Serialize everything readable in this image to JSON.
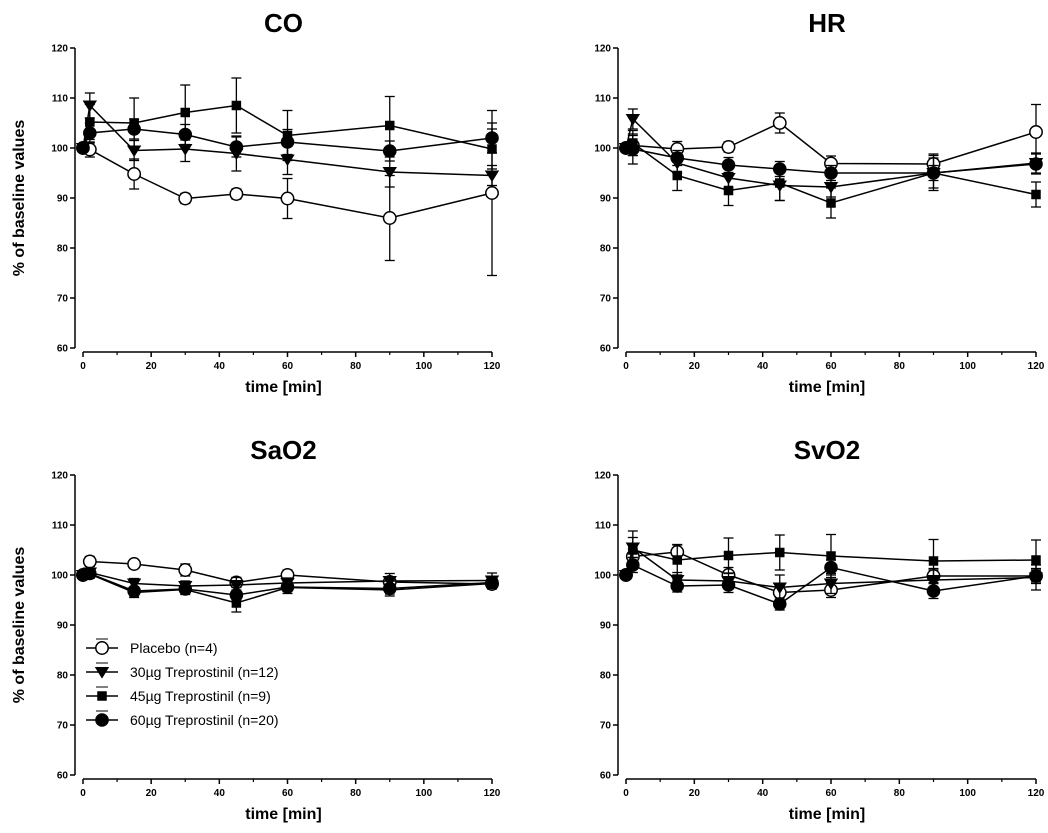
{
  "legend": [
    {
      "label": "Placebo (n=4)",
      "marker": "open-circle"
    },
    {
      "label": "30µg Treprostinil (n=12)",
      "marker": "triangle-down"
    },
    {
      "label": "45µg Treprostinil (n=9)",
      "marker": "square"
    },
    {
      "label": "60µg Treprostinil (n=20)",
      "marker": "filled-circle"
    }
  ],
  "chart_data": [
    {
      "type": "line",
      "title": "CO",
      "xlabel": "time   [min]",
      "ylabel": "% of baseline values",
      "xlim": [
        0,
        120
      ],
      "ylim": [
        60,
        120
      ],
      "xticks": [
        0,
        20,
        40,
        60,
        80,
        100,
        120
      ],
      "yticks": [
        60,
        70,
        80,
        90,
        100,
        110,
        120
      ],
      "series": [
        {
          "name": "Placebo (n=4)",
          "marker": "open-circle",
          "x": [
            0,
            2,
            15,
            30,
            45,
            60,
            90,
            120
          ],
          "y": [
            100,
            99.7,
            94.8,
            89.9,
            90.8,
            89.9,
            86.0,
            91.0
          ],
          "err": [
            0,
            1.5,
            3,
            1,
            1,
            4,
            8.5,
            16.5
          ]
        },
        {
          "name": "30µg Treprostinil (n=12)",
          "marker": "triangle-down",
          "x": [
            0,
            2,
            15,
            30,
            45,
            60,
            90,
            120
          ],
          "y": [
            100,
            108.5,
            99.5,
            99.8,
            98.9,
            97.7,
            95.2,
            94.5
          ],
          "err": [
            0,
            2.5,
            2,
            2.5,
            3.5,
            3,
            3,
            2
          ]
        },
        {
          "name": "45µg Treprostinil (n=9)",
          "marker": "square",
          "x": [
            0,
            2,
            15,
            30,
            45,
            60,
            90,
            120
          ],
          "y": [
            100,
            105.2,
            105.0,
            107.1,
            108.5,
            102.5,
            104.5,
            99.8
          ],
          "err": [
            0,
            3.5,
            5,
            5.5,
            5.5,
            5,
            5.8,
            4
          ]
        },
        {
          "name": "60µg Treprostinil (n=20)",
          "marker": "filled-circle",
          "x": [
            0,
            2,
            15,
            30,
            45,
            60,
            90,
            120
          ],
          "y": [
            100,
            103.0,
            103.8,
            102.7,
            100.2,
            101.2,
            99.4,
            102.0
          ],
          "err": [
            0,
            2,
            2,
            2,
            2,
            2.5,
            2,
            3
          ]
        }
      ]
    },
    {
      "type": "line",
      "title": "HR",
      "xlabel": "time   [min]",
      "ylabel": "",
      "xlim": [
        0,
        120
      ],
      "ylim": [
        60,
        120
      ],
      "xticks": [
        0,
        20,
        40,
        60,
        80,
        100,
        120
      ],
      "yticks": [
        60,
        70,
        80,
        90,
        100,
        110,
        120
      ],
      "series": [
        {
          "name": "Placebo (n=4)",
          "marker": "open-circle",
          "x": [
            0,
            2,
            15,
            30,
            45,
            60,
            90,
            120
          ],
          "y": [
            100,
            100.5,
            99.8,
            100.2,
            105.0,
            96.9,
            96.8,
            103.2
          ],
          "err": [
            0,
            2,
            1.5,
            1,
            2,
            1.5,
            2,
            5.5
          ]
        },
        {
          "name": "30µg Treprostinil (n=12)",
          "marker": "triangle-down",
          "x": [
            0,
            2,
            15,
            30,
            45,
            60,
            90,
            120
          ],
          "y": [
            100,
            105.8,
            97.0,
            94.0,
            92.5,
            92.2,
            95.0,
            97.0
          ],
          "err": [
            0,
            2,
            2,
            2,
            3,
            2,
            3,
            2
          ]
        },
        {
          "name": "45µg Treprostinil (n=9)",
          "marker": "square",
          "x": [
            0,
            2,
            15,
            30,
            45,
            60,
            90,
            120
          ],
          "y": [
            100,
            101.0,
            94.5,
            91.5,
            93.0,
            89.0,
            95.0,
            90.7
          ],
          "err": [
            0,
            2.5,
            3,
            3,
            3.5,
            3,
            3.5,
            2.5
          ]
        },
        {
          "name": "60µg Treprostinil (n=20)",
          "marker": "filled-circle",
          "x": [
            0,
            2,
            15,
            30,
            45,
            60,
            90,
            120
          ],
          "y": [
            100,
            99.8,
            98.0,
            96.6,
            95.8,
            95.0,
            95.0,
            96.8
          ],
          "err": [
            0,
            3,
            1.5,
            1.5,
            1.5,
            1.5,
            1.5,
            2
          ]
        }
      ]
    },
    {
      "type": "line",
      "title": "SaO2",
      "xlabel": "time   [min]",
      "ylabel": "% of baseline values",
      "xlim": [
        0,
        120
      ],
      "ylim": [
        60,
        120
      ],
      "xticks": [
        0,
        20,
        40,
        60,
        80,
        100,
        120
      ],
      "yticks": [
        60,
        70,
        80,
        90,
        100,
        110,
        120
      ],
      "series": [
        {
          "name": "Placebo (n=4)",
          "marker": "open-circle",
          "x": [
            0,
            2,
            15,
            30,
            45,
            60,
            90,
            120
          ],
          "y": [
            100,
            102.7,
            102.2,
            101.0,
            98.5,
            100.0,
            98.6,
            98.2
          ],
          "err": [
            0,
            1,
            0.8,
            1.2,
            1,
            1,
            1,
            1
          ]
        },
        {
          "name": "30µg Treprostinil (n=12)",
          "marker": "triangle-down",
          "x": [
            0,
            2,
            15,
            30,
            45,
            60,
            90,
            120
          ],
          "y": [
            100,
            100.5,
            98.3,
            97.8,
            98.0,
            98.4,
            98.8,
            98.9
          ],
          "err": [
            0,
            0.8,
            1,
            1,
            1.5,
            1,
            1.5,
            1.5
          ]
        },
        {
          "name": "45µg Treprostinil (n=9)",
          "marker": "square",
          "x": [
            0,
            2,
            15,
            30,
            45,
            60,
            90,
            120
          ],
          "y": [
            100,
            100.2,
            96.5,
            97.1,
            94.4,
            97.5,
            97.0,
            98.3
          ],
          "err": [
            0,
            0.8,
            1,
            1,
            1.8,
            1.2,
            1.2,
            1
          ]
        },
        {
          "name": "60µg Treprostinil (n=20)",
          "marker": "filled-circle",
          "x": [
            0,
            2,
            15,
            30,
            45,
            60,
            90,
            120
          ],
          "y": [
            100,
            100.3,
            96.8,
            97.2,
            96.0,
            97.6,
            97.3,
            98.5
          ],
          "err": [
            0,
            0.8,
            0.8,
            0.8,
            1,
            0.8,
            0.8,
            0.8
          ]
        }
      ]
    },
    {
      "type": "line",
      "title": "SvO2",
      "xlabel": "time   [min]",
      "ylabel": "",
      "xlim": [
        0,
        120
      ],
      "ylim": [
        60,
        120
      ],
      "xticks": [
        0,
        20,
        40,
        60,
        80,
        100,
        120
      ],
      "yticks": [
        60,
        70,
        80,
        90,
        100,
        110,
        120
      ],
      "series": [
        {
          "name": "Placebo (n=4)",
          "marker": "open-circle",
          "x": [
            0,
            2,
            15,
            30,
            45,
            60,
            90,
            120
          ],
          "y": [
            100,
            103.7,
            104.6,
            100.0,
            96.5,
            97.0,
            99.8,
            99.8
          ],
          "err": [
            0,
            1.5,
            1.5,
            1.5,
            1.5,
            1.5,
            1.5,
            1.5
          ]
        },
        {
          "name": "30µg Treprostinil (n=12)",
          "marker": "triangle-down",
          "x": [
            0,
            2,
            15,
            30,
            45,
            60,
            90,
            120
          ],
          "y": [
            100,
            105.5,
            99.0,
            98.8,
            97.5,
            98.3,
            99.0,
            99.5
          ],
          "err": [
            0,
            2,
            1.5,
            1.5,
            2.5,
            2,
            2,
            2.5
          ]
        },
        {
          "name": "45µg Treprostinil (n=9)",
          "marker": "square",
          "x": [
            0,
            2,
            15,
            30,
            45,
            60,
            90,
            120
          ],
          "y": [
            100,
            105.0,
            103.0,
            103.9,
            104.5,
            103.8,
            102.8,
            103.0
          ],
          "err": [
            0,
            3.8,
            3,
            3.5,
            3.5,
            4.3,
            4.3,
            4
          ]
        },
        {
          "name": "60µg Treprostinil (n=20)",
          "marker": "filled-circle",
          "x": [
            0,
            2,
            15,
            30,
            45,
            60,
            90,
            120
          ],
          "y": [
            100,
            102.0,
            97.8,
            98.0,
            94.2,
            101.5,
            96.8,
            99.8
          ],
          "err": [
            0,
            1.5,
            1.2,
            1.5,
            1.2,
            1.5,
            1.5,
            1.2
          ]
        }
      ]
    }
  ]
}
